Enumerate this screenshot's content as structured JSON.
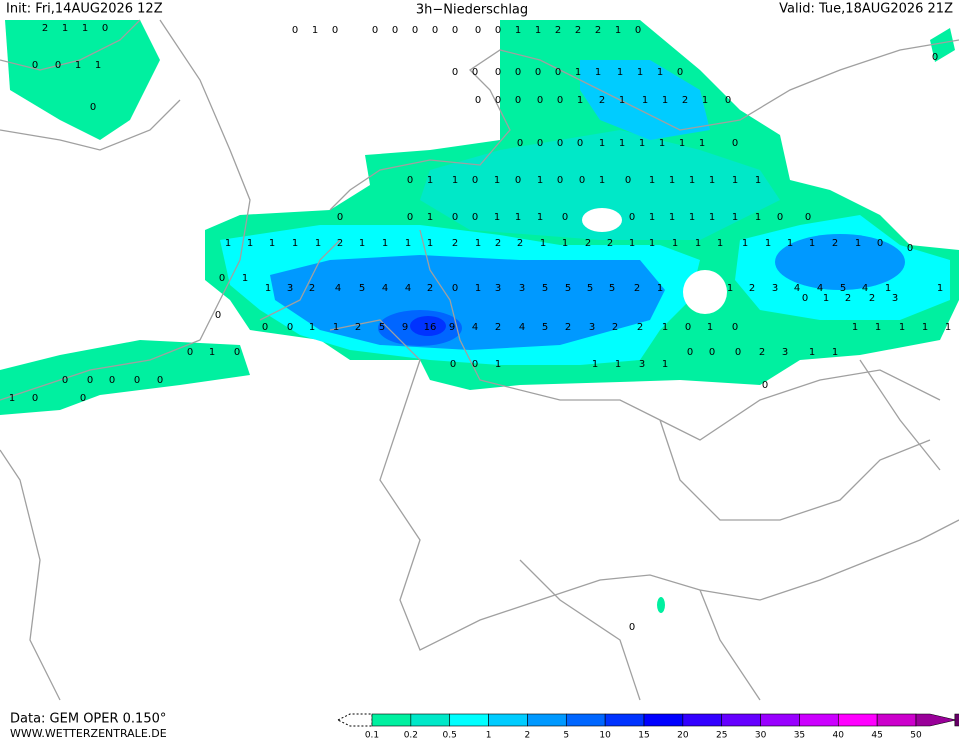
{
  "header": {
    "init": "Init: Fri,14AUG2026 12Z",
    "title": "3h−Niederschlag",
    "valid": "Valid: Tue,18AUG2026 21Z"
  },
  "footer": {
    "data": "Data: GEM OPER 0.150°",
    "site": "WWW.WETTERZENTRALE.DE"
  },
  "legend": {
    "labels": [
      0.1,
      0.2,
      0.5,
      1,
      2,
      5,
      10,
      15,
      20,
      25,
      30,
      35,
      40,
      45,
      50
    ],
    "colors": [
      "#00f0a0",
      "#00e8c8",
      "#00ffff",
      "#00ccff",
      "#0099ff",
      "#0066ff",
      "#0033ff",
      "#0000ff",
      "#3300ff",
      "#6600ff",
      "#9900ff",
      "#cc00ff",
      "#ff00ff",
      "#cc00cc",
      "#990099",
      "#660066"
    ]
  },
  "map_values": [
    [
      0,
      1,
      0,
      0,
      0,
      0,
      0,
      0,
      0,
      0,
      1,
      1,
      2,
      2,
      2,
      1,
      0
    ],
    [
      0,
      0,
      0,
      0,
      0,
      0,
      1,
      1,
      1,
      1,
      1,
      0
    ],
    [
      0,
      0,
      0,
      0,
      0,
      1,
      2,
      1,
      1,
      1,
      2,
      1,
      0
    ],
    [
      0,
      0,
      0,
      0,
      1,
      1,
      1,
      1,
      1,
      1,
      0
    ],
    [
      0,
      1,
      1,
      0,
      1,
      0,
      1,
      0,
      0,
      1,
      0,
      1,
      1,
      1,
      1,
      1,
      1
    ],
    [
      0,
      0,
      1,
      0,
      0,
      1,
      1,
      1,
      0,
      0,
      1,
      1,
      1,
      1,
      1,
      1,
      0,
      0
    ],
    [
      1,
      1,
      1,
      1,
      1,
      2,
      1,
      1,
      1,
      1,
      2,
      1,
      2,
      2,
      1,
      1,
      2,
      2,
      1,
      1,
      1,
      1,
      1,
      1,
      1,
      1,
      1,
      2,
      1,
      0
    ],
    [
      1,
      3,
      2,
      4,
      5,
      4,
      4,
      2,
      0,
      1,
      3,
      3,
      5,
      5,
      5,
      5,
      2,
      1,
      1,
      2,
      3,
      4,
      4,
      5,
      4,
      1,
      1
    ],
    [
      0,
      1,
      2,
      2,
      3
    ],
    [
      0,
      0,
      1,
      1,
      2,
      5,
      9,
      16,
      9,
      4,
      2,
      4,
      5,
      2,
      3,
      2,
      2,
      1,
      0,
      1,
      0,
      1,
      1,
      1,
      1,
      1
    ],
    [
      0,
      1,
      0,
      0,
      0,
      0,
      2,
      3,
      1,
      1
    ],
    [
      0,
      0,
      1,
      1,
      1,
      3,
      1
    ],
    [
      0,
      0,
      0,
      0,
      0
    ],
    [
      1,
      0,
      0
    ],
    [
      2,
      1,
      1,
      0
    ],
    [
      0,
      0,
      1,
      1
    ],
    [
      0,
      0,
      0,
      0,
      0,
      0,
      1,
      0
    ]
  ]
}
